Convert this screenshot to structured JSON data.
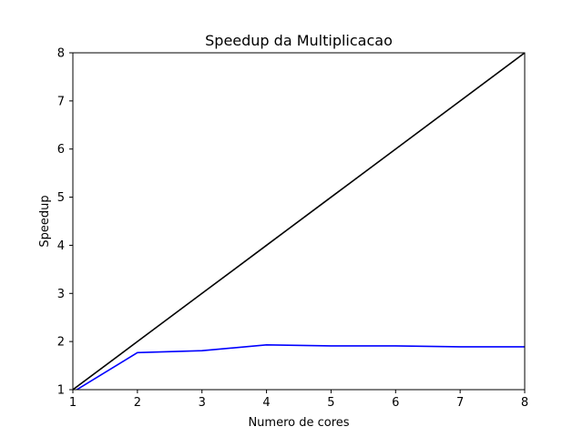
{
  "chart_data": {
    "type": "line",
    "title": "Speedup da Multiplicacao",
    "xlabel": "Numero de cores",
    "ylabel": "Speedup",
    "xlim": [
      1,
      8
    ],
    "ylim": [
      1,
      8
    ],
    "xticks": [
      "1",
      "2",
      "3",
      "4",
      "5",
      "6",
      "7",
      "8"
    ],
    "yticks": [
      "1",
      "2",
      "3",
      "4",
      "5",
      "6",
      "7",
      "8"
    ],
    "grid": false,
    "x": [
      1,
      2,
      3,
      4,
      5,
      6,
      7,
      8
    ],
    "series": [
      {
        "color": "#000000",
        "values": [
          1,
          2,
          3,
          4,
          5,
          6,
          7,
          8
        ]
      },
      {
        "color": "#0000ff",
        "values": [
          0.95,
          1.77,
          1.81,
          1.93,
          1.91,
          1.91,
          1.89,
          1.89
        ]
      }
    ]
  }
}
